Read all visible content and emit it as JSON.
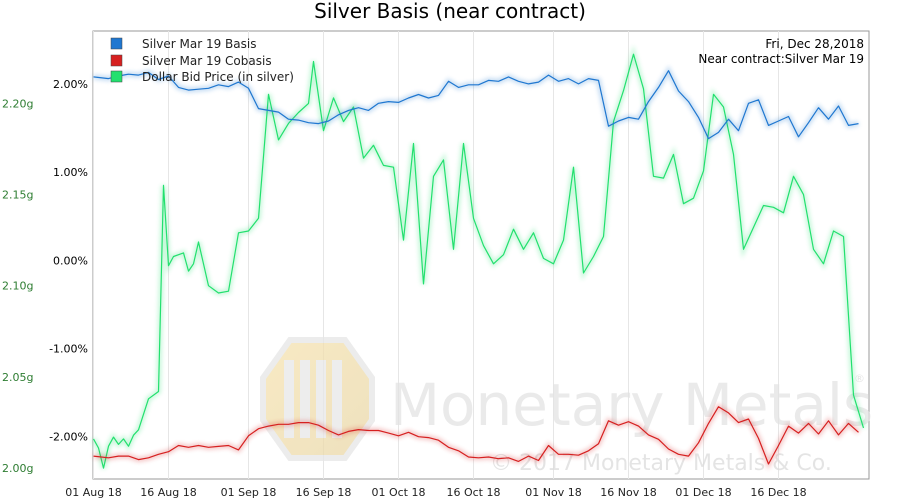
{
  "chart_data": {
    "type": "line",
    "title": "Silver Basis (near contract)",
    "info_date": "Fri, Dec 28,2018",
    "info_contract": "Near contract:Silver Mar 19",
    "watermark": {
      "brand": "Monetary Metals",
      "copyright": "© 2017 Monetary Metals & Co.",
      "registered": "®"
    },
    "x_axis": {
      "tick_labels": [
        "01 Aug 18",
        "16 Aug 18",
        "01 Sep 18",
        "16 Sep 18",
        "01 Oct 18",
        "16 Oct 18",
        "01 Nov 18",
        "16 Nov 18",
        "01 Dec 18",
        "16 Dec 18"
      ],
      "tick_days": [
        0,
        15,
        31,
        46,
        61,
        76,
        92,
        107,
        122,
        137
      ]
    },
    "y_left": {
      "tick_labels": [
        "-2.00%",
        "-1.00%",
        "0.00%",
        "1.00%",
        "2.00%"
      ],
      "tick_values": [
        -2,
        -1,
        0,
        1,
        2
      ],
      "range": [
        -2.48,
        2.6
      ],
      "color": "#000000"
    },
    "y_right": {
      "tick_labels": [
        "2.00g",
        "2.05g",
        "2.10g",
        "2.15g",
        "2.20g"
      ],
      "tick_values": [
        2.0,
        2.05,
        2.1,
        2.15,
        2.2
      ],
      "range": [
        1.994,
        2.2397
      ],
      "color": "#2e7d32"
    },
    "legend": {
      "placement": "top-left"
    },
    "grid": {
      "vertical": true,
      "horizontal": false
    },
    "series": [
      {
        "name": "Silver Mar 19 Basis",
        "color": "#1f77d0",
        "axis": "left",
        "points": [
          [
            0,
            2.08
          ],
          [
            3,
            2.06
          ],
          [
            5,
            2.09
          ],
          [
            7,
            2.11
          ],
          [
            9,
            2.1
          ],
          [
            11,
            2.13
          ],
          [
            13,
            2.05
          ],
          [
            15,
            2.09
          ],
          [
            17,
            1.96
          ],
          [
            19,
            1.93
          ],
          [
            21,
            1.94
          ],
          [
            23,
            1.95
          ],
          [
            25,
            1.99
          ],
          [
            27,
            1.97
          ],
          [
            29,
            2.02
          ],
          [
            31,
            1.95
          ],
          [
            33,
            1.72
          ],
          [
            35,
            1.7
          ],
          [
            37,
            1.68
          ],
          [
            39,
            1.6
          ],
          [
            41,
            1.59
          ],
          [
            43,
            1.56
          ],
          [
            45,
            1.55
          ],
          [
            47,
            1.58
          ],
          [
            49,
            1.65
          ],
          [
            51,
            1.7
          ],
          [
            53,
            1.73
          ],
          [
            55,
            1.7
          ],
          [
            57,
            1.78
          ],
          [
            59,
            1.8
          ],
          [
            61,
            1.79
          ],
          [
            63,
            1.84
          ],
          [
            65,
            1.88
          ],
          [
            67,
            1.84
          ],
          [
            69,
            1.87
          ],
          [
            71,
            2.03
          ],
          [
            73,
            1.96
          ],
          [
            75,
            1.99
          ],
          [
            77,
            1.99
          ],
          [
            79,
            2.04
          ],
          [
            81,
            2.03
          ],
          [
            83,
            2.08
          ],
          [
            85,
            2.03
          ],
          [
            87,
            2.0
          ],
          [
            89,
            2.02
          ],
          [
            91,
            2.1
          ],
          [
            93,
            2.03
          ],
          [
            95,
            2.06
          ],
          [
            97,
            2.0
          ],
          [
            99,
            2.06
          ],
          [
            101,
            2.04
          ],
          [
            103,
            1.52
          ],
          [
            105,
            1.58
          ],
          [
            107,
            1.62
          ],
          [
            109,
            1.6
          ],
          [
            111,
            1.8
          ],
          [
            113,
            1.96
          ],
          [
            115,
            2.15
          ],
          [
            117,
            1.92
          ],
          [
            119,
            1.8
          ],
          [
            121,
            1.62
          ],
          [
            123,
            1.38
          ],
          [
            125,
            1.45
          ],
          [
            127,
            1.6
          ],
          [
            129,
            1.47
          ],
          [
            131,
            1.78
          ],
          [
            133,
            1.82
          ],
          [
            135,
            1.53
          ],
          [
            137,
            1.58
          ],
          [
            139,
            1.63
          ],
          [
            141,
            1.4
          ],
          [
            143,
            1.56
          ],
          [
            145,
            1.73
          ],
          [
            147,
            1.6
          ],
          [
            149,
            1.75
          ],
          [
            151,
            1.53
          ],
          [
            153,
            1.55
          ]
        ]
      },
      {
        "name": "Silver Mar 19 Cobasis",
        "color": "#d62020",
        "axis": "left",
        "points": [
          [
            0,
            -2.22
          ],
          [
            3,
            -2.24
          ],
          [
            5,
            -2.22
          ],
          [
            7,
            -2.22
          ],
          [
            9,
            -2.26
          ],
          [
            11,
            -2.24
          ],
          [
            13,
            -2.2
          ],
          [
            15,
            -2.17
          ],
          [
            17,
            -2.1
          ],
          [
            19,
            -2.12
          ],
          [
            21,
            -2.1
          ],
          [
            23,
            -2.12
          ],
          [
            25,
            -2.11
          ],
          [
            27,
            -2.1
          ],
          [
            29,
            -2.15
          ],
          [
            31,
            -1.99
          ],
          [
            33,
            -1.91
          ],
          [
            35,
            -1.88
          ],
          [
            37,
            -1.86
          ],
          [
            39,
            -1.86
          ],
          [
            41,
            -1.84
          ],
          [
            43,
            -1.84
          ],
          [
            45,
            -1.87
          ],
          [
            47,
            -1.93
          ],
          [
            49,
            -1.98
          ],
          [
            51,
            -1.94
          ],
          [
            53,
            -1.92
          ],
          [
            55,
            -1.93
          ],
          [
            57,
            -1.93
          ],
          [
            59,
            -1.96
          ],
          [
            61,
            -1.99
          ],
          [
            63,
            -1.95
          ],
          [
            65,
            -2.0
          ],
          [
            67,
            -2.01
          ],
          [
            69,
            -2.04
          ],
          [
            71,
            -2.12
          ],
          [
            73,
            -2.16
          ],
          [
            75,
            -2.23
          ],
          [
            77,
            -2.24
          ],
          [
            79,
            -2.23
          ],
          [
            81,
            -2.25
          ],
          [
            83,
            -2.24
          ],
          [
            85,
            -2.28
          ],
          [
            87,
            -2.22
          ],
          [
            89,
            -2.27
          ],
          [
            91,
            -2.1
          ],
          [
            93,
            -2.2
          ],
          [
            95,
            -2.2
          ],
          [
            97,
            -2.21
          ],
          [
            99,
            -2.16
          ],
          [
            101,
            -2.08
          ],
          [
            103,
            -1.82
          ],
          [
            105,
            -1.87
          ],
          [
            107,
            -1.83
          ],
          [
            109,
            -1.88
          ],
          [
            111,
            -1.98
          ],
          [
            113,
            -2.03
          ],
          [
            115,
            -2.14
          ],
          [
            117,
            -2.2
          ],
          [
            119,
            -2.22
          ],
          [
            121,
            -2.07
          ],
          [
            123,
            -1.85
          ],
          [
            125,
            -1.66
          ],
          [
            127,
            -1.73
          ],
          [
            129,
            -1.84
          ],
          [
            131,
            -1.8
          ],
          [
            133,
            -2.02
          ],
          [
            135,
            -2.31
          ],
          [
            137,
            -2.1
          ],
          [
            139,
            -1.88
          ],
          [
            141,
            -1.96
          ],
          [
            143,
            -1.85
          ],
          [
            145,
            -1.97
          ],
          [
            147,
            -1.82
          ],
          [
            149,
            -1.98
          ],
          [
            151,
            -1.85
          ],
          [
            153,
            -1.95
          ]
        ]
      },
      {
        "name": "Dollar Bid Price (in silver)",
        "color": "#22e06e",
        "axis": "right",
        "points": [
          [
            0,
            2.016
          ],
          [
            1,
            2.011
          ],
          [
            2,
            2.0
          ],
          [
            3,
            2.012
          ],
          [
            4,
            2.017
          ],
          [
            5,
            2.013
          ],
          [
            6,
            2.016
          ],
          [
            7,
            2.012
          ],
          [
            8,
            2.018
          ],
          [
            9,
            2.021
          ],
          [
            11,
            2.038
          ],
          [
            13,
            2.042
          ],
          [
            14,
            2.155
          ],
          [
            15,
            2.111
          ],
          [
            16,
            2.116
          ],
          [
            18,
            2.118
          ],
          [
            19,
            2.108
          ],
          [
            20,
            2.112
          ],
          [
            21,
            2.124
          ],
          [
            23,
            2.1
          ],
          [
            25,
            2.096
          ],
          [
            27,
            2.097
          ],
          [
            29,
            2.129
          ],
          [
            31,
            2.13
          ],
          [
            33,
            2.137
          ],
          [
            35,
            2.205
          ],
          [
            37,
            2.18
          ],
          [
            39,
            2.189
          ],
          [
            41,
            2.195
          ],
          [
            43,
            2.2
          ],
          [
            44,
            2.223
          ],
          [
            46,
            2.185
          ],
          [
            48,
            2.203
          ],
          [
            50,
            2.19
          ],
          [
            52,
            2.198
          ],
          [
            54,
            2.17
          ],
          [
            56,
            2.177
          ],
          [
            58,
            2.166
          ],
          [
            60,
            2.165
          ],
          [
            62,
            2.125
          ],
          [
            64,
            2.178
          ],
          [
            66,
            2.101
          ],
          [
            68,
            2.16
          ],
          [
            70,
            2.169
          ],
          [
            72,
            2.12
          ],
          [
            74,
            2.178
          ],
          [
            76,
            2.137
          ],
          [
            78,
            2.122
          ],
          [
            80,
            2.112
          ],
          [
            82,
            2.117
          ],
          [
            84,
            2.131
          ],
          [
            86,
            2.12
          ],
          [
            88,
            2.129
          ],
          [
            90,
            2.115
          ],
          [
            92,
            2.112
          ],
          [
            94,
            2.125
          ],
          [
            96,
            2.165
          ],
          [
            98,
            2.107
          ],
          [
            100,
            2.116
          ],
          [
            102,
            2.127
          ],
          [
            104,
            2.19
          ],
          [
            106,
            2.207
          ],
          [
            108,
            2.227
          ],
          [
            110,
            2.208
          ],
          [
            112,
            2.16
          ],
          [
            114,
            2.159
          ],
          [
            116,
            2.172
          ],
          [
            118,
            2.145
          ],
          [
            120,
            2.148
          ],
          [
            122,
            2.163
          ],
          [
            124,
            2.205
          ],
          [
            126,
            2.198
          ],
          [
            128,
            2.172
          ],
          [
            130,
            2.12
          ],
          [
            132,
            2.132
          ],
          [
            134,
            2.144
          ],
          [
            136,
            2.143
          ],
          [
            138,
            2.14
          ],
          [
            140,
            2.16
          ],
          [
            142,
            2.15
          ],
          [
            144,
            2.12
          ],
          [
            146,
            2.112
          ],
          [
            148,
            2.13
          ],
          [
            150,
            2.127
          ],
          [
            152,
            2.04
          ],
          [
            154,
            2.022
          ]
        ]
      }
    ]
  }
}
